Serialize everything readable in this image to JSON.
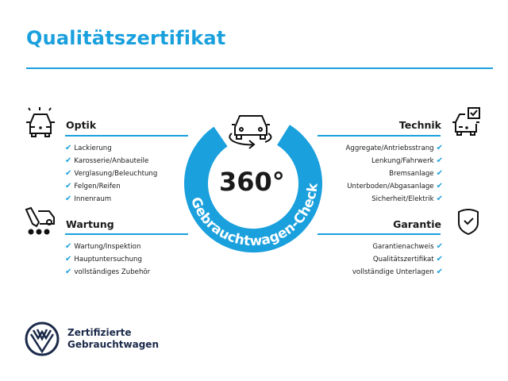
{
  "title": "Qualitätszertifikat",
  "accent_color": "#1aa0dd",
  "center": {
    "degrees": "360°",
    "ring_text": "Gebrauchtwagen-Check",
    "icon": "car-rotate-icon"
  },
  "sections": {
    "optik": {
      "title": "Optik",
      "icon": "car-lights-icon",
      "items": [
        "Lackierung",
        "Karosserie/Anbauteile",
        "Verglasung/Beleuchtung",
        "Felgen/Reifen",
        "Innenraum"
      ]
    },
    "wartung": {
      "title": "Wartung",
      "icon": "service-tools-icon",
      "items": [
        "Wartung/Inspektion",
        "Hauptuntersuchung",
        "vollständiges Zubehör"
      ]
    },
    "technik": {
      "title": "Technik",
      "icon": "car-checkbox-icon",
      "items": [
        "Aggregate/Antriebsstrang",
        "Lenkung/Fahrwerk",
        "Bremsanlage",
        "Unterboden/Abgasanlage",
        "Sicherheit/Elektrik"
      ]
    },
    "garantie": {
      "title": "Garantie",
      "icon": "shield-check-icon",
      "items": [
        "Garantienachweis",
        "Qualitätszertifikat",
        "vollständige Unterlagen"
      ]
    }
  },
  "check_mark": "✔",
  "footer": {
    "line1": "Zertifizierte",
    "line2": "Gebrauchtwagen",
    "logo": "VW"
  }
}
